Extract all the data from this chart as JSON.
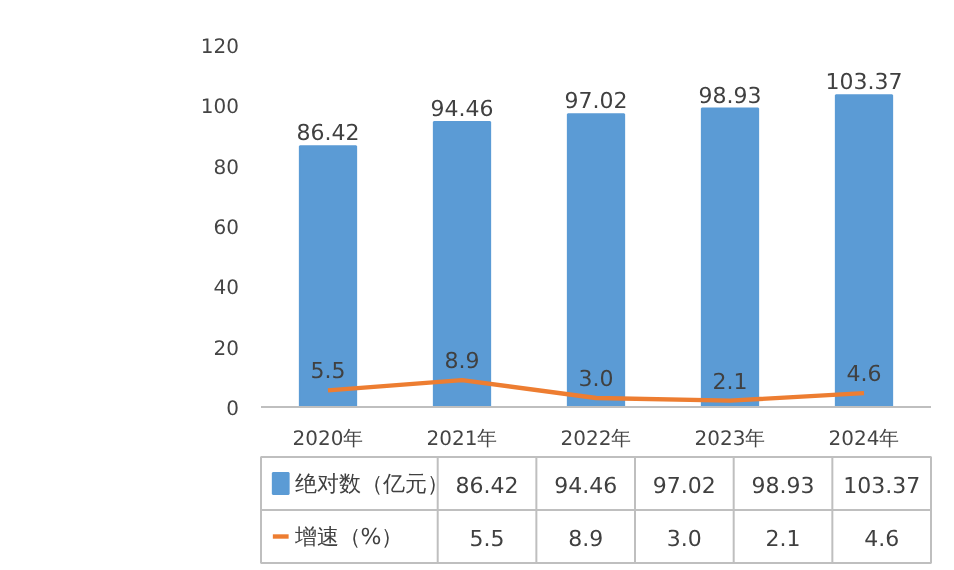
{
  "chart_data": {
    "type": "bar",
    "categories": [
      "2020年",
      "2021年",
      "2022年",
      "2023年",
      "2024年"
    ],
    "series": [
      {
        "name": "绝对数（亿元）",
        "color": "#5b9bd5",
        "values": [
          86.42,
          94.46,
          97.02,
          98.93,
          103.37
        ],
        "value_labels": [
          "86.42",
          "94.46",
          "97.02",
          "98.93",
          "103.37"
        ]
      },
      {
        "name": "增速（%）",
        "type": "line",
        "color": "#ed7d31",
        "values": [
          5.5,
          8.9,
          3.0,
          2.1,
          4.6
        ],
        "value_labels": [
          "5.5",
          "8.9",
          "3.0",
          "2.1",
          "4.6"
        ]
      }
    ],
    "ylim": [
      0,
      120
    ],
    "yticks": [
      0,
      20,
      40,
      60,
      80,
      100,
      120
    ],
    "legend": "bottom",
    "grid": false
  }
}
